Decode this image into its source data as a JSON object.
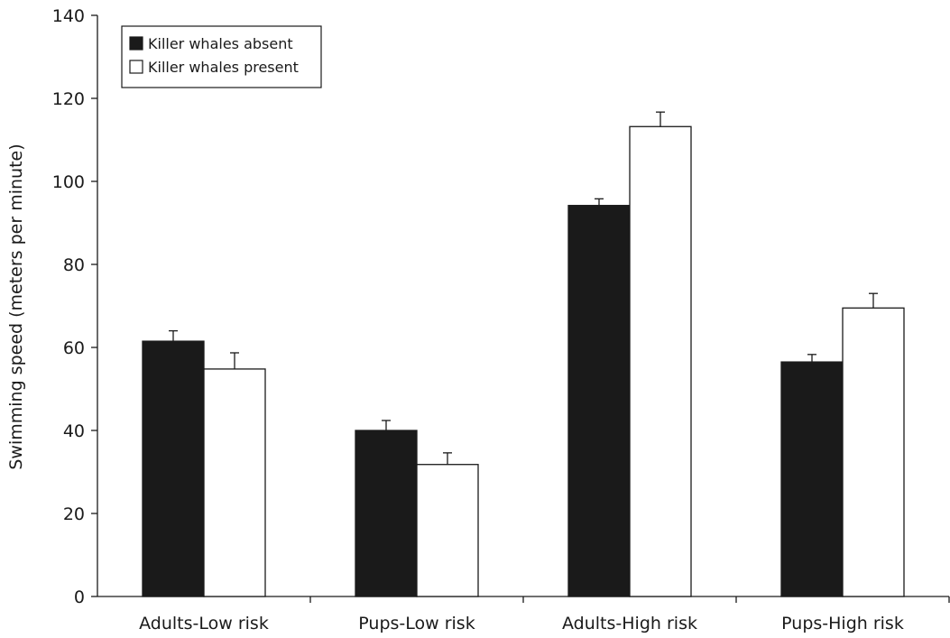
{
  "chart_data": {
    "type": "bar",
    "title": "",
    "xlabel": "",
    "ylabel": "Swimming speed (meters per minute)",
    "ylim": [
      0,
      140
    ],
    "yticks": [
      0,
      20,
      40,
      60,
      80,
      100,
      120,
      140
    ],
    "grid": false,
    "legend_position": "top-left",
    "categories": [
      "Adults-Low risk",
      "Pups-Low risk",
      "Adults-High risk",
      "Pups-High risk"
    ],
    "series": [
      {
        "name": "Killer whales absent",
        "color": "#1a1a1a",
        "values": [
          61.5,
          40,
          94.2,
          56.5
        ],
        "errors": [
          2.5,
          2.4,
          1.6,
          1.8
        ]
      },
      {
        "name": "Killer whales present",
        "color": "#ffffff",
        "values": [
          54.8,
          31.8,
          113.2,
          69.5
        ],
        "errors": [
          3.9,
          2.8,
          3.5,
          3.5
        ]
      }
    ]
  }
}
